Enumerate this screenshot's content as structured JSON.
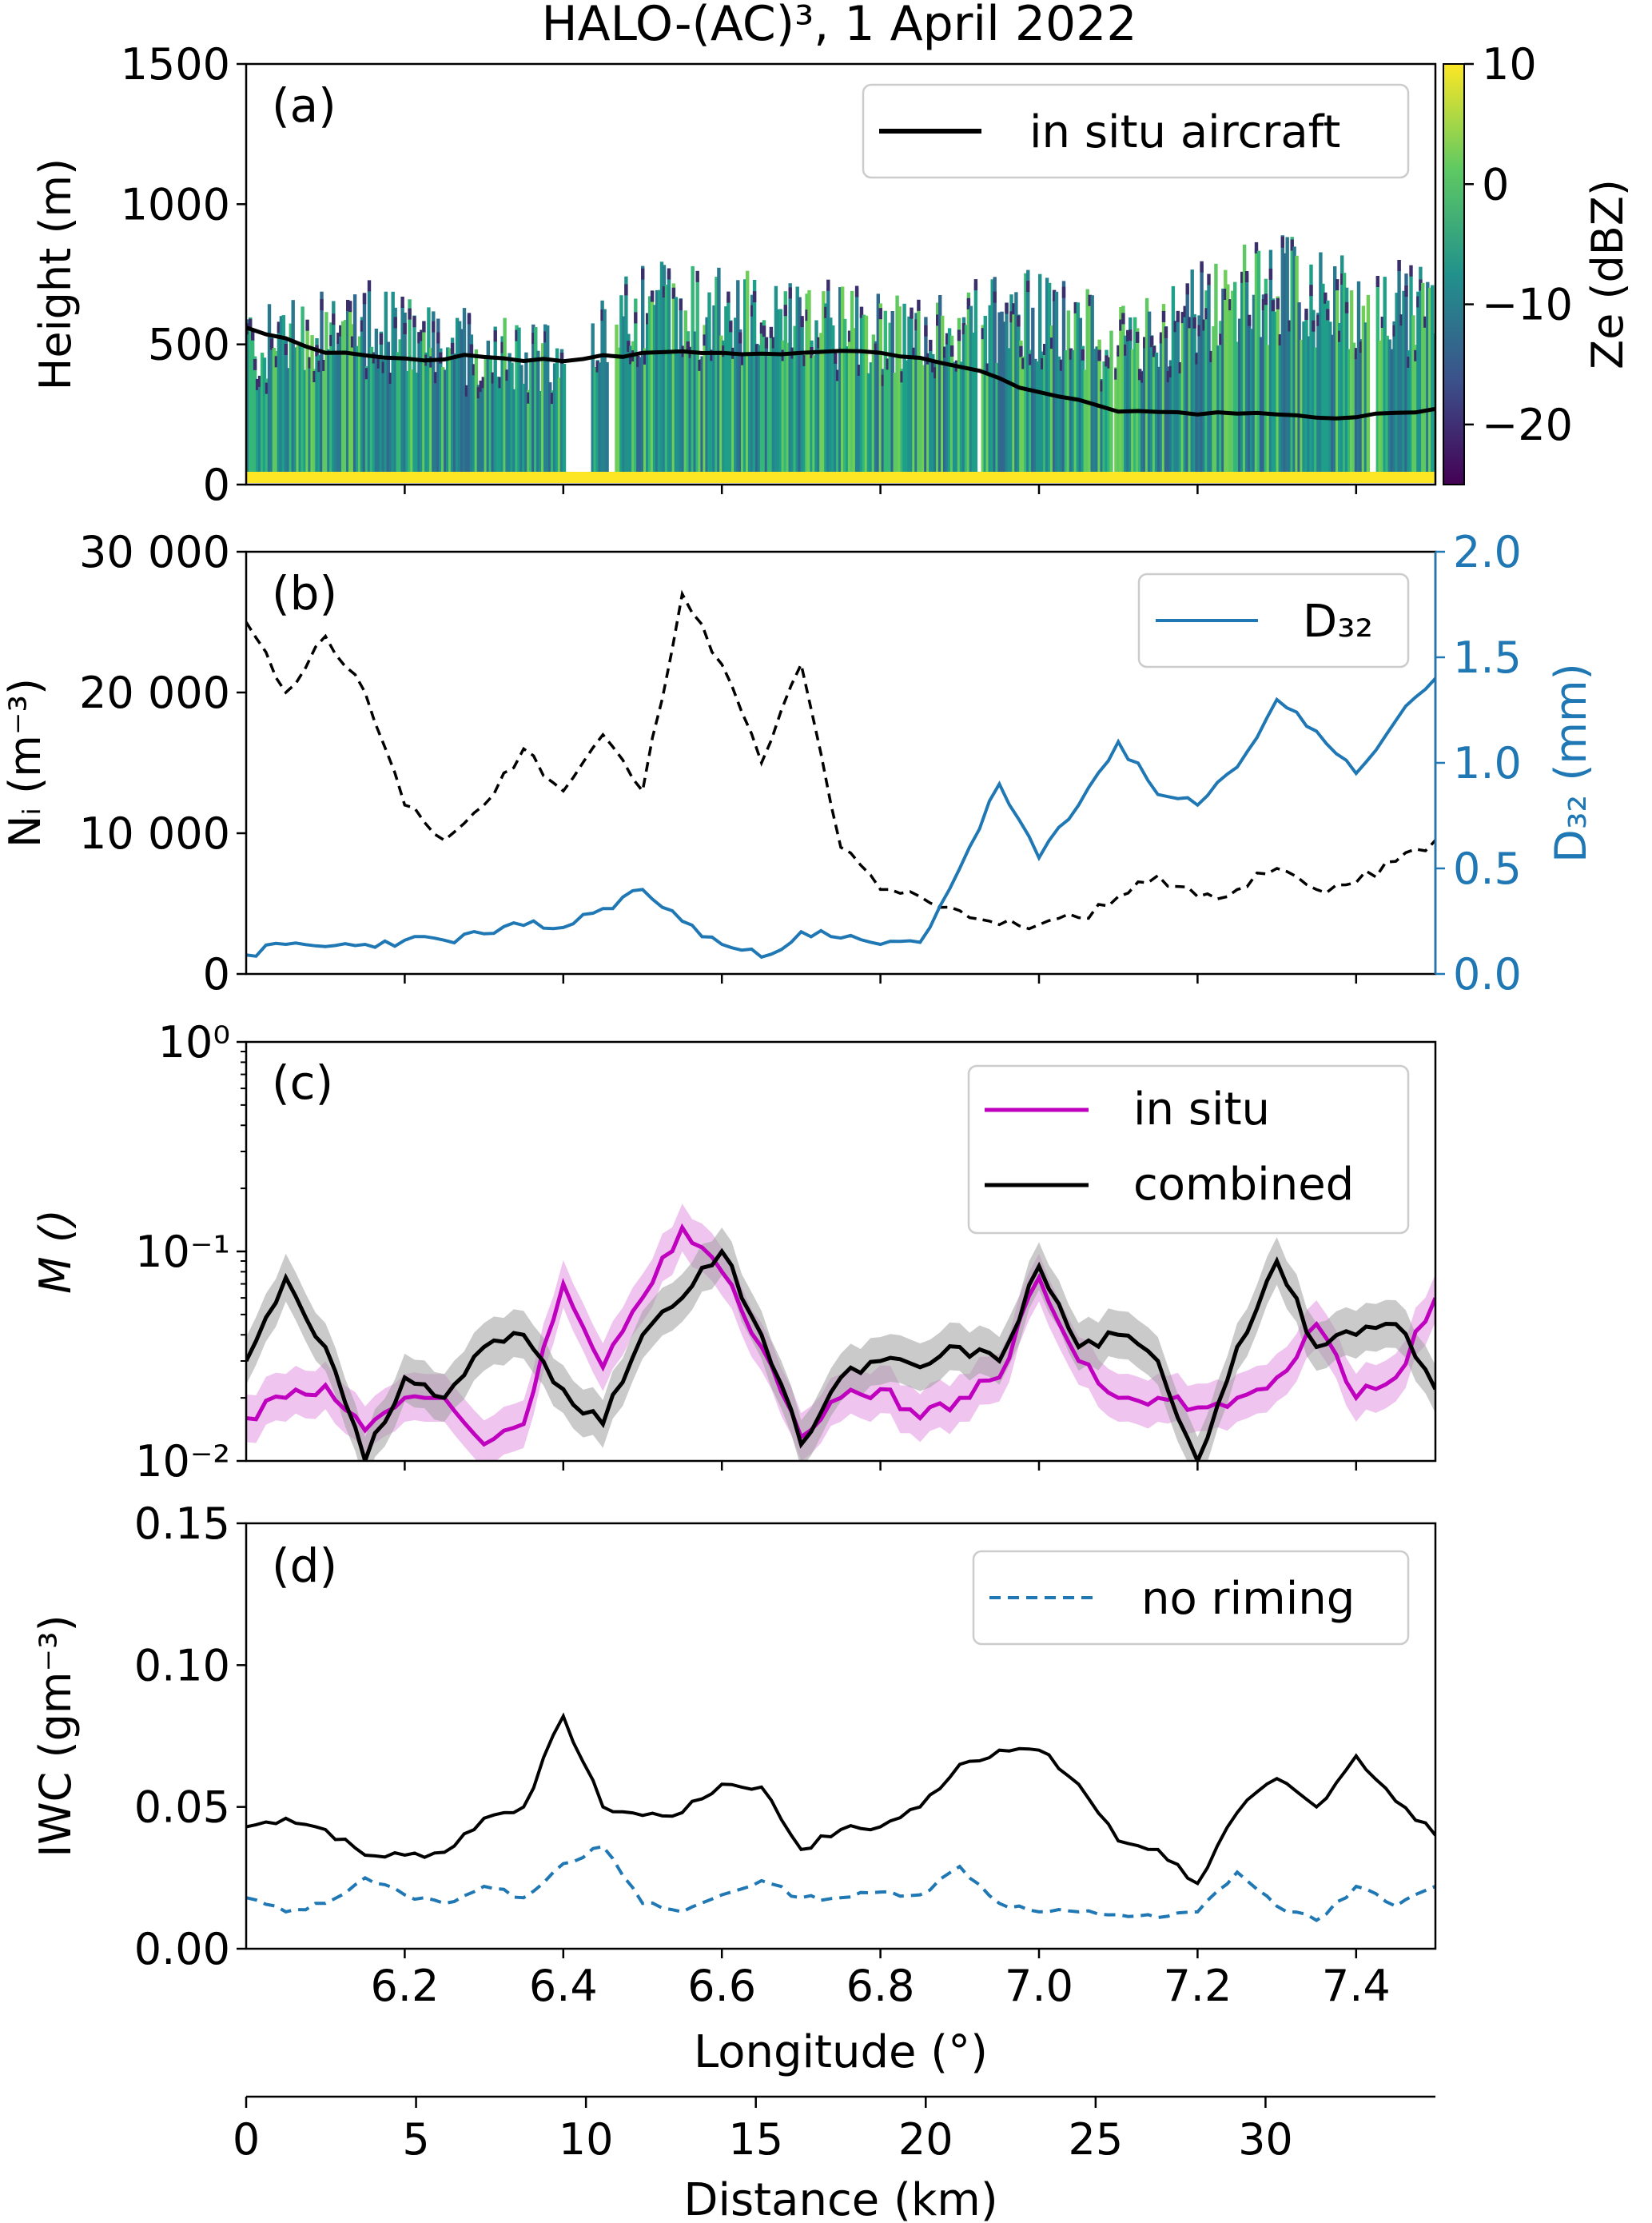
{
  "title": "HALO-(AC)³, 1 April 2022",
  "chart_data": [
    {
      "panel": "(a)",
      "type": "heatmap",
      "ylabel": "Height (m)",
      "ylim": [
        0,
        1500
      ],
      "yticks": [
        "0",
        "500",
        "1000",
        "1500"
      ],
      "x": [
        6.0,
        6.1,
        6.2,
        6.3,
        6.4,
        6.5,
        6.6,
        6.7,
        6.8,
        6.9,
        7.0,
        7.1,
        7.2,
        7.3,
        7.4,
        7.5
      ],
      "cloud_top_m": [
        620,
        710,
        690,
        620,
        570,
        820,
        780,
        740,
        690,
        720,
        780,
        650,
        800,
        900,
        850,
        800
      ],
      "colorbar": {
        "label": "Ze (dBZ)",
        "range": [
          -25,
          10
        ],
        "ticks": [
          "10",
          "0",
          "−10",
          "−20"
        ]
      },
      "legend": [
        {
          "label": "in situ aircraft",
          "color": "#000000"
        }
      ],
      "aircraft_height_m": [
        560,
        470,
        450,
        455,
        440,
        470,
        470,
        470,
        470,
        420,
        330,
        260,
        250,
        250,
        240,
        270
      ]
    },
    {
      "panel": "(b)",
      "type": "line",
      "ylabel": "Nᵢ (m⁻³)",
      "ylim": [
        0,
        30000
      ],
      "yticks": [
        "0",
        "10 000",
        "20 000",
        "30 000"
      ],
      "y2label": "D₃₂ (mm)",
      "y2lim": [
        0.0,
        2.0
      ],
      "y2ticks": [
        "0.0",
        "0.5",
        "1.0",
        "1.5",
        "2.0"
      ],
      "x": [
        6.0,
        6.05,
        6.1,
        6.15,
        6.2,
        6.25,
        6.3,
        6.35,
        6.4,
        6.45,
        6.5,
        6.55,
        6.6,
        6.65,
        6.7,
        6.75,
        6.8,
        6.85,
        6.9,
        6.95,
        7.0,
        7.05,
        7.1,
        7.15,
        7.2,
        7.25,
        7.3,
        7.35,
        7.4,
        7.45,
        7.5
      ],
      "series": [
        {
          "legend": "",
          "color": "#000000",
          "style": "dashed",
          "axis": "left",
          "values": [
            25000,
            20000,
            24000,
            20000,
            12000,
            9500,
            12000,
            16000,
            13000,
            17000,
            13000,
            27000,
            22000,
            15000,
            22000,
            9000,
            6000,
            5500,
            4500,
            3500,
            3500,
            4000,
            5500,
            7000,
            5500,
            6000,
            7500,
            6000,
            6500,
            8000,
            9500
          ]
        },
        {
          "legend": "D₃₂",
          "color": "#1f77b4",
          "style": "solid",
          "axis": "right",
          "values": [
            0.09,
            0.14,
            0.13,
            0.14,
            0.16,
            0.16,
            0.19,
            0.23,
            0.22,
            0.31,
            0.4,
            0.25,
            0.14,
            0.08,
            0.2,
            0.17,
            0.14,
            0.15,
            0.5,
            0.9,
            0.55,
            0.8,
            1.1,
            0.85,
            0.8,
            0.98,
            1.3,
            1.15,
            0.95,
            1.2,
            1.4
          ]
        }
      ]
    },
    {
      "panel": "(c)",
      "type": "line",
      "ylabel": "M ()",
      "yscale": "log",
      "ylim": [
        0.01,
        1
      ],
      "yticks": [
        "10⁻²",
        "10⁻¹",
        "10⁰"
      ],
      "x": [
        6.0,
        6.05,
        6.1,
        6.15,
        6.2,
        6.25,
        6.3,
        6.35,
        6.4,
        6.45,
        6.5,
        6.55,
        6.6,
        6.65,
        6.7,
        6.75,
        6.8,
        6.85,
        6.9,
        6.95,
        7.0,
        7.05,
        7.1,
        7.15,
        7.2,
        7.25,
        7.3,
        7.35,
        7.4,
        7.45,
        7.5
      ],
      "series": [
        {
          "legend": "in situ",
          "color": "#bf00bf",
          "band": true,
          "values": [
            0.016,
            0.02,
            0.023,
            0.014,
            0.02,
            0.02,
            0.012,
            0.015,
            0.07,
            0.028,
            0.06,
            0.13,
            0.08,
            0.035,
            0.013,
            0.02,
            0.022,
            0.016,
            0.02,
            0.025,
            0.075,
            0.03,
            0.02,
            0.02,
            0.018,
            0.02,
            0.025,
            0.045,
            0.02,
            0.025,
            0.06
          ]
        },
        {
          "legend": "combined",
          "color": "#000000",
          "band": true,
          "values": [
            0.03,
            0.075,
            0.035,
            0.01,
            0.025,
            0.02,
            0.035,
            0.04,
            0.022,
            0.015,
            0.04,
            0.06,
            0.1,
            0.04,
            0.012,
            0.025,
            0.03,
            0.028,
            0.035,
            0.03,
            0.085,
            0.035,
            0.04,
            0.03,
            0.01,
            0.035,
            0.09,
            0.035,
            0.04,
            0.045,
            0.022
          ]
        }
      ]
    },
    {
      "panel": "(d)",
      "type": "line",
      "ylabel": "IWC (gm⁻³)",
      "ylim": [
        0.0,
        0.15
      ],
      "yticks": [
        "0.00",
        "0.05",
        "0.10",
        "0.15"
      ],
      "xlabel": "Longitude (°)",
      "xlim": [
        6.0,
        7.5
      ],
      "xticks": [
        "6.2",
        "6.4",
        "6.6",
        "6.8",
        "7.0",
        "7.2",
        "7.4"
      ],
      "x": [
        6.0,
        6.05,
        6.1,
        6.15,
        6.2,
        6.25,
        6.3,
        6.35,
        6.4,
        6.45,
        6.5,
        6.55,
        6.6,
        6.65,
        6.7,
        6.75,
        6.8,
        6.85,
        6.9,
        6.95,
        7.0,
        7.05,
        7.1,
        7.15,
        7.2,
        7.25,
        7.3,
        7.35,
        7.4,
        7.45,
        7.5
      ],
      "series": [
        {
          "legend": "",
          "color": "#000000",
          "style": "solid",
          "values": [
            0.043,
            0.046,
            0.042,
            0.033,
            0.033,
            0.034,
            0.046,
            0.05,
            0.082,
            0.05,
            0.047,
            0.048,
            0.058,
            0.057,
            0.035,
            0.042,
            0.043,
            0.05,
            0.065,
            0.07,
            0.07,
            0.058,
            0.038,
            0.035,
            0.023,
            0.048,
            0.06,
            0.05,
            0.068,
            0.052,
            0.04
          ]
        },
        {
          "legend": "no riming",
          "color": "#1f77b4",
          "style": "dashed",
          "values": [
            0.018,
            0.013,
            0.016,
            0.025,
            0.019,
            0.016,
            0.022,
            0.018,
            0.03,
            0.036,
            0.016,
            0.013,
            0.019,
            0.024,
            0.018,
            0.018,
            0.02,
            0.019,
            0.029,
            0.016,
            0.013,
            0.013,
            0.012,
            0.011,
            0.013,
            0.027,
            0.015,
            0.01,
            0.022,
            0.015,
            0.022
          ]
        }
      ]
    },
    {
      "panel": "distance-axis",
      "type": "axis",
      "xlabel": "Distance (km)",
      "xlim": [
        0,
        35
      ],
      "xticks": [
        "0",
        "5",
        "10",
        "15",
        "20",
        "25",
        "30"
      ]
    }
  ]
}
